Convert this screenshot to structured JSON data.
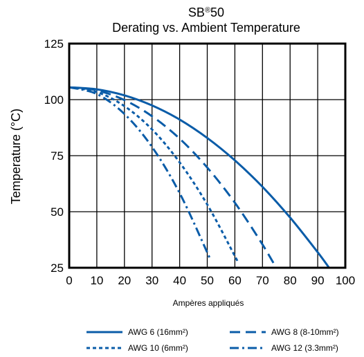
{
  "chart_data": {
    "type": "line",
    "title": "SB",
    "title_superscript": "®",
    "title_suffix": "50",
    "subtitle": "Derating vs. Ambient Temperature",
    "xlabel": "Ampères appliqués",
    "ylabel": "Temperature (°C)",
    "xlim": [
      0,
      100
    ],
    "ylim": [
      25,
      125
    ],
    "xticks": [
      0,
      10,
      20,
      30,
      40,
      50,
      60,
      70,
      80,
      90,
      100
    ],
    "yticks": [
      25,
      50,
      75,
      100,
      125
    ],
    "grid": true,
    "legend_position": "bottom",
    "line_color": "#0a5ca8",
    "series": [
      {
        "name": "AWG 6 (16mm²)",
        "style": "solid",
        "x": [
          0,
          10,
          20,
          30,
          40,
          50,
          60,
          70,
          80,
          90,
          95
        ],
        "y": [
          105.5,
          104.6,
          101.9,
          97.4,
          91.1,
          82.9,
          72.9,
          61.1,
          47.4,
          31.9,
          23.5
        ]
      },
      {
        "name": "AWG 8 (8-10mm²)",
        "style": "dash",
        "x": [
          0,
          10,
          20,
          30,
          40,
          50,
          60,
          70,
          77
        ],
        "y": [
          105.5,
          104.1,
          99.8,
          92.6,
          82.6,
          69.7,
          54.0,
          35.4,
          20.5
        ]
      },
      {
        "name": "AWG 10 (6mm²)",
        "style": "dot",
        "x": [
          0,
          10,
          20,
          30,
          40,
          50,
          60,
          61
        ],
        "y": [
          105.5,
          103.4,
          97.1,
          86.7,
          72.0,
          53.2,
          30.2,
          27.6
        ]
      },
      {
        "name": "AWG 12 (3.3mm²)",
        "style": "dashdot",
        "x": [
          0,
          10,
          20,
          30,
          40,
          50,
          51
        ],
        "y": [
          105.5,
          102.5,
          93.6,
          78.9,
          58.3,
          31.8,
          28.7
        ]
      }
    ]
  }
}
